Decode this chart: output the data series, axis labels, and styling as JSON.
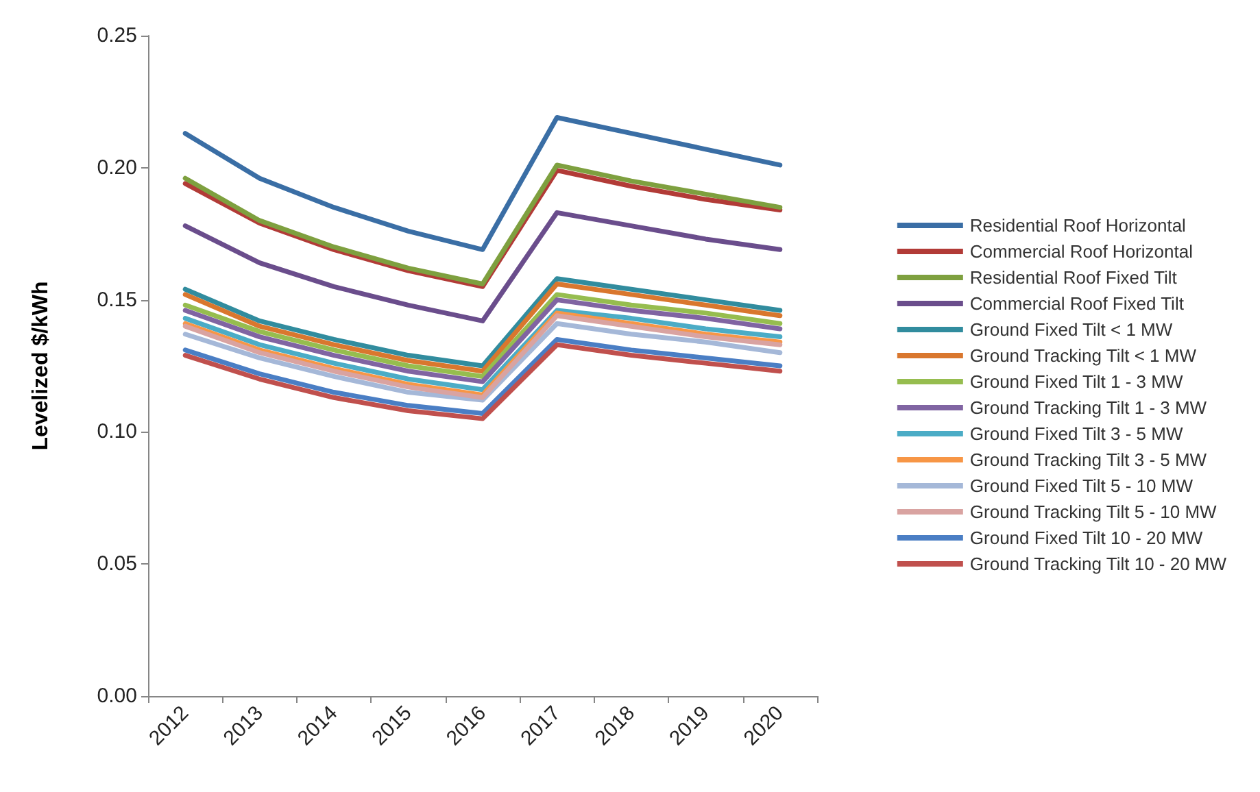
{
  "chart_data": {
    "type": "line",
    "ylabel": "Levelized $/kWh",
    "categories": [
      "2012",
      "2013",
      "2014",
      "2015",
      "2016",
      "2017",
      "2018",
      "2019",
      "2020"
    ],
    "ylim": [
      0,
      0.25
    ],
    "yticks": [
      {
        "value": 0,
        "label": "0.00"
      },
      {
        "value": 0.05,
        "label": "0.05"
      },
      {
        "value": 0.1,
        "label": "0.10"
      },
      {
        "value": 0.15,
        "label": "0.15"
      },
      {
        "value": 0.2,
        "label": "0.20"
      },
      {
        "value": 0.25,
        "label": "0.25"
      }
    ],
    "grid": false,
    "legend": "right",
    "marker": "none",
    "line_style": "solid",
    "series": [
      {
        "name": "Residential Roof Horizontal",
        "color": "#3a6ea5",
        "values": [
          0.213,
          0.196,
          0.185,
          0.176,
          0.169,
          0.219,
          0.213,
          0.207,
          0.201
        ]
      },
      {
        "name": "Commercial Roof Horizontal",
        "color": "#b23b37",
        "values": [
          0.194,
          0.179,
          0.169,
          0.161,
          0.155,
          0.199,
          0.193,
          0.188,
          0.184
        ]
      },
      {
        "name": "Residential Roof Fixed Tilt",
        "color": "#7ea03f",
        "values": [
          0.196,
          0.18,
          0.17,
          0.162,
          0.156,
          0.201,
          0.195,
          0.19,
          0.185
        ]
      },
      {
        "name": "Commercial Roof Fixed Tilt",
        "color": "#6a4d8c",
        "values": [
          0.178,
          0.164,
          0.155,
          0.148,
          0.142,
          0.183,
          0.178,
          0.173,
          0.169
        ]
      },
      {
        "name": "Ground Fixed Tilt < 1 MW",
        "color": "#318c9e",
        "values": [
          0.154,
          0.142,
          0.135,
          0.129,
          0.125,
          0.158,
          0.154,
          0.15,
          0.146
        ]
      },
      {
        "name": "Ground Tracking Tilt < 1 MW",
        "color": "#d9772e",
        "values": [
          0.152,
          0.14,
          0.133,
          0.127,
          0.123,
          0.156,
          0.152,
          0.148,
          0.144
        ]
      },
      {
        "name": "Ground Fixed Tilt 1 - 3 MW",
        "color": "#96bd4f",
        "values": [
          0.148,
          0.138,
          0.131,
          0.125,
          0.121,
          0.152,
          0.148,
          0.145,
          0.141
        ]
      },
      {
        "name": "Ground Tracking Tilt 1 - 3 MW",
        "color": "#8064a2",
        "values": [
          0.146,
          0.136,
          0.129,
          0.123,
          0.119,
          0.15,
          0.146,
          0.143,
          0.139
        ]
      },
      {
        "name": "Ground Fixed Tilt 3 - 5 MW",
        "color": "#4bacc6",
        "values": [
          0.143,
          0.133,
          0.126,
          0.12,
          0.116,
          0.146,
          0.143,
          0.139,
          0.136
        ]
      },
      {
        "name": "Ground Tracking Tilt 3 - 5 MW",
        "color": "#f79646",
        "values": [
          0.141,
          0.131,
          0.124,
          0.118,
          0.114,
          0.145,
          0.141,
          0.137,
          0.134
        ]
      },
      {
        "name": "Ground Fixed Tilt 5 - 10 MW",
        "color": "#a5b8d8",
        "values": [
          0.137,
          0.128,
          0.121,
          0.115,
          0.112,
          0.141,
          0.137,
          0.134,
          0.13
        ]
      },
      {
        "name": "Ground Tracking Tilt 5 - 10 MW",
        "color": "#d9a3a1",
        "values": [
          0.14,
          0.13,
          0.123,
          0.117,
          0.113,
          0.144,
          0.14,
          0.136,
          0.133
        ]
      },
      {
        "name": "Ground Fixed Tilt 10 - 20 MW",
        "color": "#4a7ec4",
        "values": [
          0.131,
          0.122,
          0.115,
          0.11,
          0.107,
          0.135,
          0.131,
          0.128,
          0.125
        ]
      },
      {
        "name": "Ground Tracking Tilt 10 - 20 MW",
        "color": "#c0504d",
        "values": [
          0.129,
          0.12,
          0.113,
          0.108,
          0.105,
          0.133,
          0.129,
          0.126,
          0.123
        ]
      }
    ]
  }
}
